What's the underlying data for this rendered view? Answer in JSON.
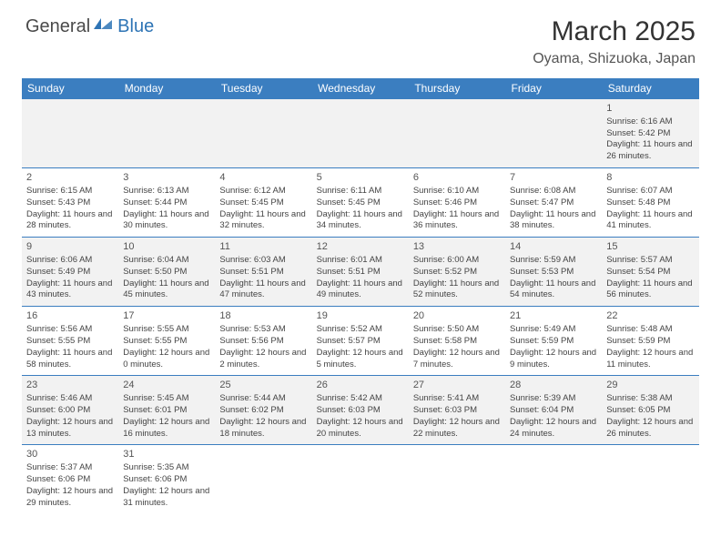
{
  "logo": {
    "part1": "General",
    "part2": "Blue"
  },
  "title": "March 2025",
  "location": "Oyama, Shizuoka, Japan",
  "colors": {
    "header_bg": "#3b7ec0",
    "header_fg": "#ffffff",
    "row_alt": "#f2f2f2",
    "row_norm": "#ffffff",
    "border": "#3b7ec0",
    "logo_accent": "#2e74b5"
  },
  "daysOfWeek": [
    "Sunday",
    "Monday",
    "Tuesday",
    "Wednesday",
    "Thursday",
    "Friday",
    "Saturday"
  ],
  "rows": [
    [
      null,
      null,
      null,
      null,
      null,
      null,
      {
        "n": "1",
        "sr": "6:16 AM",
        "ss": "5:42 PM",
        "dl": "11 hours and 26 minutes."
      }
    ],
    [
      {
        "n": "2",
        "sr": "6:15 AM",
        "ss": "5:43 PM",
        "dl": "11 hours and 28 minutes."
      },
      {
        "n": "3",
        "sr": "6:13 AM",
        "ss": "5:44 PM",
        "dl": "11 hours and 30 minutes."
      },
      {
        "n": "4",
        "sr": "6:12 AM",
        "ss": "5:45 PM",
        "dl": "11 hours and 32 minutes."
      },
      {
        "n": "5",
        "sr": "6:11 AM",
        "ss": "5:45 PM",
        "dl": "11 hours and 34 minutes."
      },
      {
        "n": "6",
        "sr": "6:10 AM",
        "ss": "5:46 PM",
        "dl": "11 hours and 36 minutes."
      },
      {
        "n": "7",
        "sr": "6:08 AM",
        "ss": "5:47 PM",
        "dl": "11 hours and 38 minutes."
      },
      {
        "n": "8",
        "sr": "6:07 AM",
        "ss": "5:48 PM",
        "dl": "11 hours and 41 minutes."
      }
    ],
    [
      {
        "n": "9",
        "sr": "6:06 AM",
        "ss": "5:49 PM",
        "dl": "11 hours and 43 minutes."
      },
      {
        "n": "10",
        "sr": "6:04 AM",
        "ss": "5:50 PM",
        "dl": "11 hours and 45 minutes."
      },
      {
        "n": "11",
        "sr": "6:03 AM",
        "ss": "5:51 PM",
        "dl": "11 hours and 47 minutes."
      },
      {
        "n": "12",
        "sr": "6:01 AM",
        "ss": "5:51 PM",
        "dl": "11 hours and 49 minutes."
      },
      {
        "n": "13",
        "sr": "6:00 AM",
        "ss": "5:52 PM",
        "dl": "11 hours and 52 minutes."
      },
      {
        "n": "14",
        "sr": "5:59 AM",
        "ss": "5:53 PM",
        "dl": "11 hours and 54 minutes."
      },
      {
        "n": "15",
        "sr": "5:57 AM",
        "ss": "5:54 PM",
        "dl": "11 hours and 56 minutes."
      }
    ],
    [
      {
        "n": "16",
        "sr": "5:56 AM",
        "ss": "5:55 PM",
        "dl": "11 hours and 58 minutes."
      },
      {
        "n": "17",
        "sr": "5:55 AM",
        "ss": "5:55 PM",
        "dl": "12 hours and 0 minutes."
      },
      {
        "n": "18",
        "sr": "5:53 AM",
        "ss": "5:56 PM",
        "dl": "12 hours and 2 minutes."
      },
      {
        "n": "19",
        "sr": "5:52 AM",
        "ss": "5:57 PM",
        "dl": "12 hours and 5 minutes."
      },
      {
        "n": "20",
        "sr": "5:50 AM",
        "ss": "5:58 PM",
        "dl": "12 hours and 7 minutes."
      },
      {
        "n": "21",
        "sr": "5:49 AM",
        "ss": "5:59 PM",
        "dl": "12 hours and 9 minutes."
      },
      {
        "n": "22",
        "sr": "5:48 AM",
        "ss": "5:59 PM",
        "dl": "12 hours and 11 minutes."
      }
    ],
    [
      {
        "n": "23",
        "sr": "5:46 AM",
        "ss": "6:00 PM",
        "dl": "12 hours and 13 minutes."
      },
      {
        "n": "24",
        "sr": "5:45 AM",
        "ss": "6:01 PM",
        "dl": "12 hours and 16 minutes."
      },
      {
        "n": "25",
        "sr": "5:44 AM",
        "ss": "6:02 PM",
        "dl": "12 hours and 18 minutes."
      },
      {
        "n": "26",
        "sr": "5:42 AM",
        "ss": "6:03 PM",
        "dl": "12 hours and 20 minutes."
      },
      {
        "n": "27",
        "sr": "5:41 AM",
        "ss": "6:03 PM",
        "dl": "12 hours and 22 minutes."
      },
      {
        "n": "28",
        "sr": "5:39 AM",
        "ss": "6:04 PM",
        "dl": "12 hours and 24 minutes."
      },
      {
        "n": "29",
        "sr": "5:38 AM",
        "ss": "6:05 PM",
        "dl": "12 hours and 26 minutes."
      }
    ],
    [
      {
        "n": "30",
        "sr": "5:37 AM",
        "ss": "6:06 PM",
        "dl": "12 hours and 29 minutes."
      },
      {
        "n": "31",
        "sr": "5:35 AM",
        "ss": "6:06 PM",
        "dl": "12 hours and 31 minutes."
      },
      null,
      null,
      null,
      null,
      null
    ]
  ],
  "labels": {
    "sunrise": "Sunrise:",
    "sunset": "Sunset:",
    "daylight": "Daylight:"
  }
}
